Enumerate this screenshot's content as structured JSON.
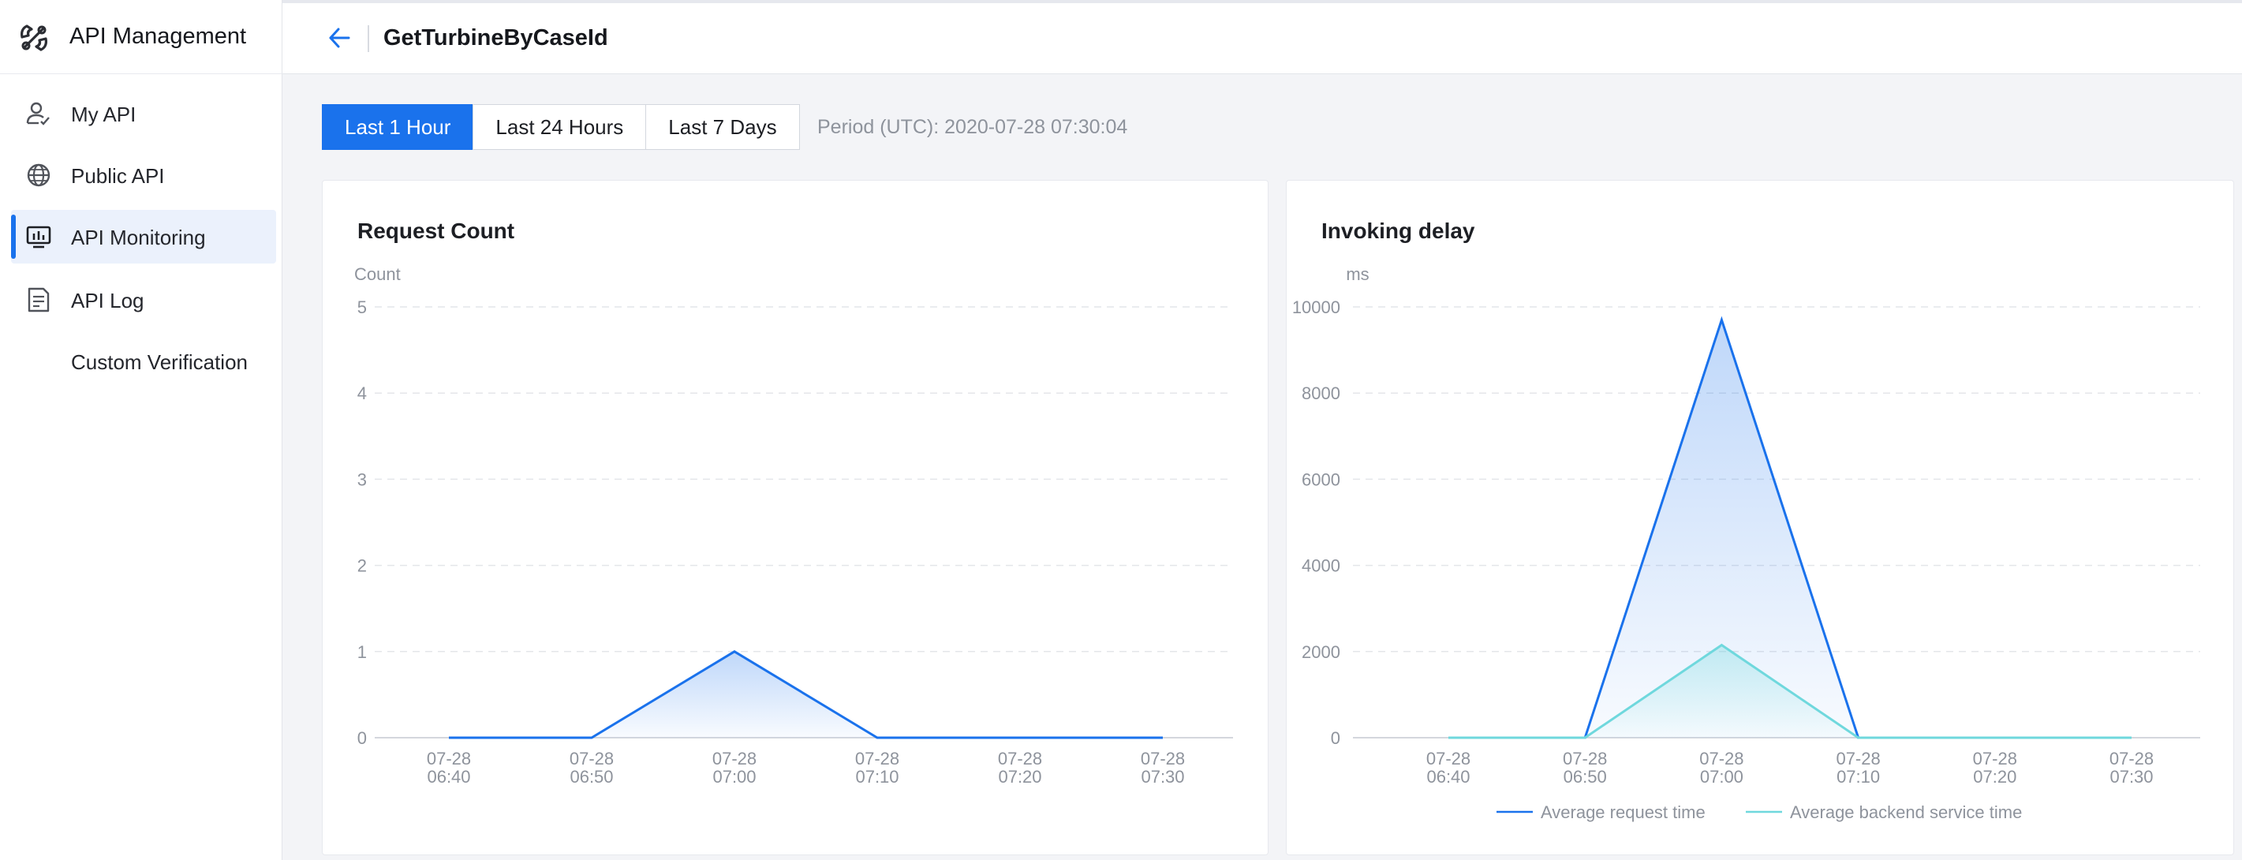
{
  "colors": {
    "accent": "#1a72ec",
    "secondary": "#6fd8dd",
    "muted_text": "#8e939c"
  },
  "sidebar": {
    "brand_title": "API Management",
    "items": [
      {
        "label": "My API",
        "icon": "user-api-icon",
        "active": false
      },
      {
        "label": "Public API",
        "icon": "globe-icon",
        "active": false
      },
      {
        "label": "API Monitoring",
        "icon": "monitor-icon",
        "active": true
      },
      {
        "label": "API Log",
        "icon": "document-icon",
        "active": false
      },
      {
        "label": "Custom Verification",
        "icon": "",
        "active": false
      }
    ]
  },
  "header": {
    "title": "GetTurbineByCaseId"
  },
  "toolbar": {
    "tabs": [
      "Last 1 Hour",
      "Last 24 Hours",
      "Last 7 Days"
    ],
    "active_tab": "Last 1 Hour",
    "period_text": "Period (UTC): 2020-07-28 07:30:04"
  },
  "chart_data": [
    {
      "type": "area",
      "title": "Request Count",
      "ylabel": "Count",
      "xlabel": "",
      "ylim": [
        0,
        5
      ],
      "yticks": [
        "0",
        "1",
        "2",
        "3",
        "4",
        "5"
      ],
      "categories": [
        [
          "07-28",
          "06:40"
        ],
        [
          "07-28",
          "06:50"
        ],
        [
          "07-28",
          "07:00"
        ],
        [
          "07-28",
          "07:10"
        ],
        [
          "07-28",
          "07:20"
        ],
        [
          "07-28",
          "07:30"
        ]
      ],
      "series": [
        {
          "name": "Count",
          "values": [
            0,
            0,
            1,
            0,
            0,
            0
          ],
          "color": "#1a72ec"
        }
      ],
      "grid": true
    },
    {
      "type": "area",
      "title": "Invoking delay",
      "ylabel": "ms",
      "xlabel": "",
      "ylim": [
        0,
        10000
      ],
      "yticks": [
        "0",
        "2000",
        "4000",
        "6000",
        "8000",
        "10000"
      ],
      "categories": [
        [
          "07-28",
          "06:40"
        ],
        [
          "07-28",
          "06:50"
        ],
        [
          "07-28",
          "07:00"
        ],
        [
          "07-28",
          "07:10"
        ],
        [
          "07-28",
          "07:20"
        ],
        [
          "07-28",
          "07:30"
        ]
      ],
      "series": [
        {
          "name": "Average request time",
          "values": [
            0,
            0,
            9700,
            0,
            0,
            0
          ],
          "color": "#1a72ec"
        },
        {
          "name": "Average backend service time",
          "values": [
            0,
            0,
            2150,
            0,
            0,
            0
          ],
          "color": "#6fd8dd"
        }
      ],
      "legend": "bottom",
      "grid": true
    }
  ]
}
